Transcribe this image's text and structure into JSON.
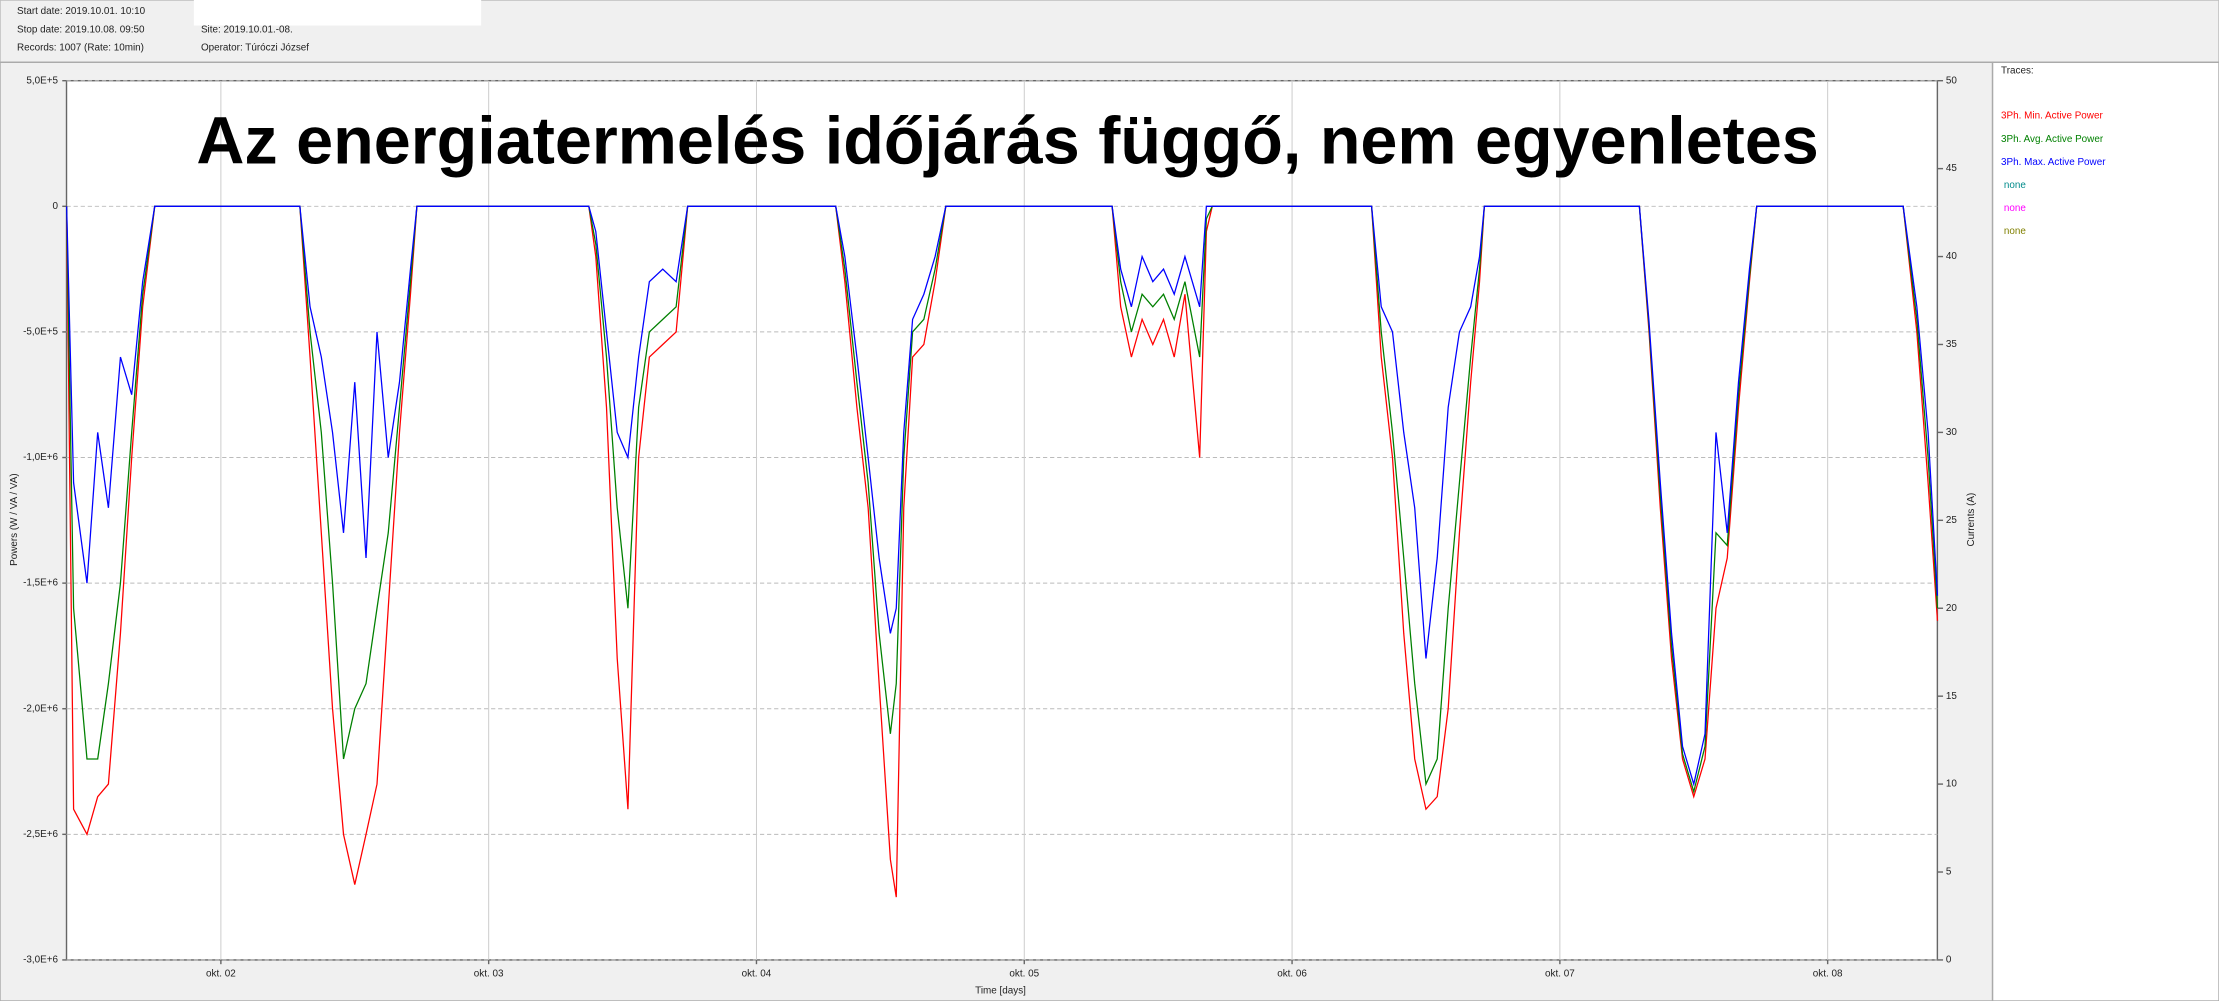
{
  "header": {
    "start": "Start date: 2019.10.01. 10:10",
    "stop": "Stop date: 2019.10.08. 09:50",
    "records": "Records: 1007  (Rate: 10min)",
    "site": "Site: 2019.10.01.-08.",
    "operator": "Operator: Túróczi József"
  },
  "chart_data": {
    "type": "line",
    "title": "Az energiatermelés időjárás függő, nem egyenletes",
    "xlabel": "Time [days]",
    "ylabel": "Powers (W / VA / VA)",
    "y2label": "Currents (A)",
    "legend_title": "Traces:",
    "x": [
      1.424,
      1.45,
      1.5,
      1.54,
      1.58,
      1.625,
      1.667,
      1.708,
      1.753,
      2.295,
      2.333,
      2.375,
      2.417,
      2.458,
      2.5,
      2.542,
      2.583,
      2.625,
      2.667,
      2.708,
      2.732,
      3.374,
      3.4,
      3.44,
      3.48,
      3.52,
      3.56,
      3.6,
      3.65,
      3.7,
      3.743,
      4.296,
      4.33,
      4.375,
      4.417,
      4.458,
      4.5,
      4.522,
      4.55,
      4.583,
      4.625,
      4.667,
      4.707,
      5.328,
      5.36,
      5.4,
      5.44,
      5.48,
      5.52,
      5.56,
      5.6,
      5.655,
      5.68,
      5.702,
      6.297,
      6.333,
      6.375,
      6.417,
      6.458,
      6.5,
      6.542,
      6.583,
      6.625,
      6.667,
      6.7,
      6.718,
      7.297,
      7.333,
      7.375,
      7.417,
      7.458,
      7.5,
      7.542,
      7.583,
      7.625,
      7.667,
      7.708,
      7.735,
      8.282,
      8.333,
      8.375,
      8.41
    ],
    "series": [
      {
        "name": "3Ph. Min. Active Power",
        "color": "#ff0000",
        "values": [
          0,
          -2400000,
          -2500000,
          -2350000,
          -2300000,
          -1700000,
          -1000000,
          -400000,
          0,
          0,
          -600000,
          -1300000,
          -2000000,
          -2500000,
          -2700000,
          -2500000,
          -2300000,
          -1600000,
          -900000,
          -350000,
          0,
          0,
          -200000,
          -800000,
          -1800000,
          -2400000,
          -1000000,
          -600000,
          -550000,
          -500000,
          0,
          0,
          -300000,
          -800000,
          -1200000,
          -1900000,
          -2600000,
          -2750000,
          -1200000,
          -600000,
          -550000,
          -300000,
          0,
          0,
          -400000,
          -600000,
          -450000,
          -550000,
          -450000,
          -600000,
          -350000,
          -1000000,
          -100000,
          0,
          0,
          -600000,
          -1000000,
          -1700000,
          -2200000,
          -2400000,
          -2350000,
          -2000000,
          -1300000,
          -700000,
          -300000,
          0,
          0,
          -500000,
          -1200000,
          -1800000,
          -2200000,
          -2350000,
          -2200000,
          -1600000,
          -1400000,
          -800000,
          -300000,
          0,
          0,
          -500000,
          -1100000,
          -1650000
        ]
      },
      {
        "name": "3Ph. Avg. Active Power",
        "color": "#008000",
        "values": [
          0,
          -1600000,
          -2200000,
          -2200000,
          -1900000,
          -1500000,
          -900000,
          -350000,
          0,
          0,
          -500000,
          -900000,
          -1500000,
          -2200000,
          -2000000,
          -1900000,
          -1600000,
          -1300000,
          -800000,
          -300000,
          0,
          0,
          -150000,
          -600000,
          -1200000,
          -1600000,
          -800000,
          -500000,
          -450000,
          -400000,
          0,
          0,
          -250000,
          -700000,
          -1100000,
          -1700000,
          -2100000,
          -1900000,
          -1000000,
          -500000,
          -450000,
          -250000,
          0,
          0,
          -300000,
          -500000,
          -350000,
          -400000,
          -350000,
          -450000,
          -300000,
          -600000,
          -50000,
          0,
          0,
          -500000,
          -900000,
          -1400000,
          -1900000,
          -2300000,
          -2200000,
          -1600000,
          -1100000,
          -600000,
          -250000,
          0,
          0,
          -480000,
          -1150000,
          -1750000,
          -2180000,
          -2330000,
          -2150000,
          -1300000,
          -1350000,
          -750000,
          -280000,
          0,
          0,
          -450000,
          -1000000,
          -1600000
        ]
      },
      {
        "name": "3Ph. Max. Active Power",
        "color": "#0000ff",
        "values": [
          0,
          -1100000,
          -1500000,
          -900000,
          -1200000,
          -600000,
          -750000,
          -300000,
          0,
          0,
          -400000,
          -600000,
          -900000,
          -1300000,
          -700000,
          -1400000,
          -500000,
          -1000000,
          -700000,
          -250000,
          0,
          0,
          -100000,
          -500000,
          -900000,
          -1000000,
          -600000,
          -300000,
          -250000,
          -300000,
          0,
          0,
          -200000,
          -600000,
          -1000000,
          -1400000,
          -1700000,
          -1600000,
          -900000,
          -450000,
          -350000,
          -200000,
          0,
          0,
          -250000,
          -400000,
          -200000,
          -300000,
          -250000,
          -350000,
          -200000,
          -400000,
          0,
          0,
          0,
          -400000,
          -500000,
          -900000,
          -1200000,
          -1800000,
          -1400000,
          -800000,
          -500000,
          -400000,
          -200000,
          0,
          0,
          -460000,
          -1100000,
          -1700000,
          -2150000,
          -2300000,
          -2100000,
          -900000,
          -1300000,
          -700000,
          -250000,
          0,
          0,
          -400000,
          -900000,
          -1550000
        ]
      }
    ],
    "unused_traces": [
      {
        "name": "none",
        "color": "#008b8b"
      },
      {
        "name": "none",
        "color": "#ff00ff"
      },
      {
        "name": "none",
        "color": "#808000"
      }
    ],
    "xlim": [
      1.4236,
      8.4097
    ],
    "xticks": [
      {
        "value": 2,
        "label": "okt. 02"
      },
      {
        "value": 3,
        "label": "okt. 03"
      },
      {
        "value": 4,
        "label": "okt. 04"
      },
      {
        "value": 5,
        "label": "okt. 05"
      },
      {
        "value": 6,
        "label": "okt. 06"
      },
      {
        "value": 7,
        "label": "okt. 07"
      },
      {
        "value": 8,
        "label": "okt. 08"
      }
    ],
    "ylim": [
      -3000000,
      500000
    ],
    "yticks": [
      {
        "value": 500000,
        "label": "5,0E+5"
      },
      0,
      {
        "value": -500000,
        "label": "-5,0E+5"
      },
      {
        "value": -1000000,
        "label": "-1,0E+6"
      },
      {
        "value": -1500000,
        "label": "-1,5E+6"
      },
      {
        "value": -2000000,
        "label": "-2,0E+6"
      },
      {
        "value": -2500000,
        "label": "-2,5E+6"
      },
      {
        "value": -3000000,
        "label": "-3,0E+6"
      }
    ],
    "y2lim": [
      0,
      50
    ],
    "y2ticks": [
      0,
      5,
      10,
      15,
      20,
      25,
      30,
      35,
      40,
      45,
      50
    ],
    "grid": true
  }
}
